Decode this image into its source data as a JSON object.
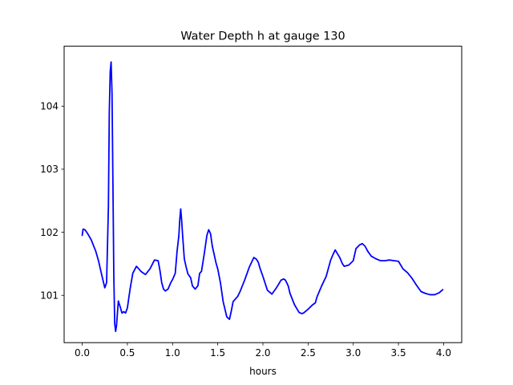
{
  "chart_data": {
    "type": "line",
    "title": "Water Depth h at gauge 130",
    "xlabel": "hours",
    "ylabel": "",
    "xlim": [
      -0.2,
      4.2
    ],
    "ylim": [
      100.25,
      104.95
    ],
    "xticks": [
      0.0,
      0.5,
      1.0,
      1.5,
      2.0,
      2.5,
      3.0,
      3.5,
      4.0
    ],
    "xtick_labels": [
      "0.0",
      "0.5",
      "1.0",
      "1.5",
      "2.0",
      "2.5",
      "3.0",
      "3.5",
      "4.0"
    ],
    "yticks": [
      101,
      102,
      103,
      104
    ],
    "ytick_labels": [
      "101",
      "102",
      "103",
      "104"
    ],
    "grid": false,
    "series": [
      {
        "color": "#0000ff",
        "x": [
          0.0,
          0.01,
          0.03,
          0.06,
          0.1,
          0.15,
          0.18,
          0.22,
          0.25,
          0.27,
          0.29,
          0.3,
          0.31,
          0.32,
          0.33,
          0.34,
          0.35,
          0.36,
          0.37,
          0.38,
          0.39,
          0.4,
          0.42,
          0.44,
          0.46,
          0.48,
          0.5,
          0.53,
          0.56,
          0.6,
          0.62,
          0.65,
          0.68,
          0.7,
          0.75,
          0.8,
          0.84,
          0.86,
          0.88,
          0.9,
          0.92,
          0.95,
          0.98,
          1.0,
          1.03,
          1.05,
          1.07,
          1.08,
          1.09,
          1.1,
          1.11,
          1.12,
          1.13,
          1.15,
          1.17,
          1.2,
          1.22,
          1.25,
          1.28,
          1.3,
          1.32,
          1.35,
          1.38,
          1.4,
          1.42,
          1.44,
          1.46,
          1.48,
          1.5,
          1.53,
          1.56,
          1.6,
          1.63,
          1.65,
          1.67,
          1.7,
          1.72,
          1.75,
          1.8,
          1.85,
          1.9,
          1.93,
          1.95,
          1.97,
          2.0,
          2.05,
          2.1,
          2.15,
          2.2,
          2.23,
          2.25,
          2.28,
          2.3,
          2.35,
          2.4,
          2.43,
          2.45,
          2.5,
          2.55,
          2.58,
          2.6,
          2.65,
          2.7,
          2.75,
          2.78,
          2.8,
          2.85,
          2.88,
          2.9,
          2.95,
          3.0,
          3.03,
          3.07,
          3.1,
          3.13,
          3.16,
          3.2,
          3.25,
          3.3,
          3.35,
          3.4,
          3.45,
          3.5,
          3.55,
          3.6,
          3.65,
          3.7,
          3.75,
          3.8,
          3.85,
          3.9,
          3.95,
          3.99
        ],
        "y": [
          101.95,
          102.05,
          102.04,
          101.98,
          101.88,
          101.7,
          101.55,
          101.3,
          101.12,
          101.2,
          102.4,
          103.9,
          104.55,
          104.7,
          104.2,
          102.8,
          101.3,
          100.55,
          100.43,
          100.52,
          100.72,
          100.91,
          100.82,
          100.72,
          100.74,
          100.72,
          100.8,
          101.1,
          101.35,
          101.46,
          101.43,
          101.38,
          101.35,
          101.33,
          101.42,
          101.56,
          101.55,
          101.4,
          101.2,
          101.1,
          101.07,
          101.1,
          101.2,
          101.25,
          101.35,
          101.7,
          101.95,
          102.2,
          102.37,
          102.2,
          101.98,
          101.78,
          101.58,
          101.45,
          101.34,
          101.28,
          101.15,
          101.1,
          101.15,
          101.35,
          101.38,
          101.65,
          101.95,
          102.04,
          101.98,
          101.78,
          101.65,
          101.52,
          101.42,
          101.2,
          100.9,
          100.66,
          100.62,
          100.75,
          100.9,
          100.95,
          100.98,
          101.07,
          101.25,
          101.45,
          101.6,
          101.57,
          101.52,
          101.42,
          101.3,
          101.08,
          101.02,
          101.12,
          101.24,
          101.26,
          101.24,
          101.15,
          101.03,
          100.85,
          100.73,
          100.71,
          100.72,
          100.78,
          100.85,
          100.88,
          100.98,
          101.15,
          101.3,
          101.56,
          101.66,
          101.72,
          101.6,
          101.5,
          101.46,
          101.48,
          101.55,
          101.74,
          101.8,
          101.82,
          101.78,
          101.7,
          101.62,
          101.58,
          101.55,
          101.55,
          101.56,
          101.55,
          101.54,
          101.42,
          101.36,
          101.27,
          101.16,
          101.06,
          101.03,
          101.01,
          101.01,
          101.04,
          101.09
        ]
      }
    ]
  }
}
